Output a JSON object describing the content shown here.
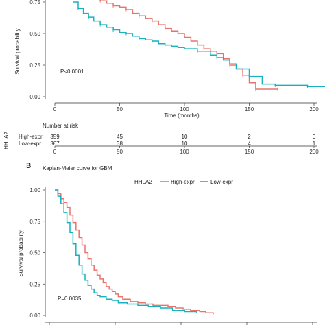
{
  "colors": {
    "high": "#e8736c",
    "low": "#17b1bf",
    "axis": "#333333"
  },
  "chart_data": [
    {
      "type": "line",
      "subtype": "kaplan-meier",
      "title": "",
      "xlabel": "Time (months)",
      "ylabel": "Survival probability",
      "xlim": [
        0,
        210
      ],
      "ylim": [
        0,
        1
      ],
      "xticks": [
        "0",
        "50",
        "100",
        "150",
        "200"
      ],
      "yticks": [
        "0.00",
        "0.25",
        "0.50",
        "0.75"
      ],
      "annotation": "P<0.0001",
      "series": [
        {
          "name": "High-expr",
          "color": "#e8736c",
          "points": [
            [
              14,
              0.86
            ],
            [
              18,
              0.83
            ],
            [
              22,
              0.81
            ],
            [
              26,
              0.79
            ],
            [
              30,
              0.78
            ],
            [
              35,
              0.76
            ],
            [
              40,
              0.74
            ],
            [
              45,
              0.72
            ],
            [
              50,
              0.71
            ],
            [
              55,
              0.69
            ],
            [
              60,
              0.66
            ],
            [
              65,
              0.64
            ],
            [
              70,
              0.62
            ],
            [
              75,
              0.6
            ],
            [
              80,
              0.57
            ],
            [
              85,
              0.54
            ],
            [
              90,
              0.52
            ],
            [
              95,
              0.5
            ],
            [
              100,
              0.47
            ],
            [
              105,
              0.44
            ],
            [
              110,
              0.41
            ],
            [
              115,
              0.38
            ],
            [
              120,
              0.36
            ],
            [
              125,
              0.34
            ],
            [
              130,
              0.3
            ],
            [
              135,
              0.25
            ],
            [
              140,
              0.22
            ],
            [
              145,
              0.17
            ],
            [
              150,
              0.11
            ],
            [
              155,
              0.06
            ],
            [
              160,
              0.06
            ],
            [
              172,
              0.06
            ]
          ]
        },
        {
          "name": "Low-expr",
          "color": "#17b1bf",
          "points": [
            [
              14,
              0.75
            ],
            [
              18,
              0.7
            ],
            [
              22,
              0.66
            ],
            [
              26,
              0.63
            ],
            [
              30,
              0.6
            ],
            [
              35,
              0.57
            ],
            [
              40,
              0.55
            ],
            [
              45,
              0.53
            ],
            [
              50,
              0.51
            ],
            [
              55,
              0.5
            ],
            [
              60,
              0.48
            ],
            [
              65,
              0.46
            ],
            [
              70,
              0.45
            ],
            [
              75,
              0.44
            ],
            [
              80,
              0.42
            ],
            [
              85,
              0.41
            ],
            [
              90,
              0.4
            ],
            [
              95,
              0.39
            ],
            [
              100,
              0.38
            ],
            [
              110,
              0.36
            ],
            [
              120,
              0.33
            ],
            [
              125,
              0.31
            ],
            [
              130,
              0.29
            ],
            [
              135,
              0.26
            ],
            [
              140,
              0.22
            ],
            [
              150,
              0.16
            ],
            [
              160,
              0.1
            ],
            [
              170,
              0.09
            ],
            [
              180,
              0.09
            ],
            [
              195,
              0.08
            ],
            [
              210,
              0.08
            ]
          ]
        }
      ]
    },
    {
      "type": "line",
      "subtype": "kaplan-meier",
      "title": "Kaplan-Meier curve for GBM",
      "xlabel": "",
      "ylabel": "Survival probability",
      "ylim": [
        0,
        1
      ],
      "yticks": [
        "0.00",
        "0.25",
        "0.50",
        "0.75",
        "1.00"
      ],
      "annotation": "P=0.0035",
      "panel_label": "B",
      "legend": {
        "title": "HHLA2",
        "position": "top",
        "entries": [
          "High-expr",
          "Low-expr"
        ]
      },
      "series": [
        {
          "name": "High-expr",
          "color": "#e8736c",
          "points": [
            [
              0,
              1.0
            ],
            [
              2,
              0.97
            ],
            [
              4,
              0.93
            ],
            [
              6,
              0.9
            ],
            [
              8,
              0.86
            ],
            [
              10,
              0.8
            ],
            [
              12,
              0.74
            ],
            [
              14,
              0.68
            ],
            [
              16,
              0.62
            ],
            [
              18,
              0.56
            ],
            [
              20,
              0.5
            ],
            [
              22,
              0.45
            ],
            [
              24,
              0.4
            ],
            [
              26,
              0.36
            ],
            [
              28,
              0.32
            ],
            [
              30,
              0.29
            ],
            [
              32,
              0.26
            ],
            [
              34,
              0.23
            ],
            [
              36,
              0.21
            ],
            [
              38,
              0.19
            ],
            [
              40,
              0.17
            ],
            [
              42,
              0.15
            ],
            [
              45,
              0.13
            ],
            [
              50,
              0.11
            ],
            [
              55,
              0.1
            ],
            [
              60,
              0.09
            ],
            [
              65,
              0.08
            ],
            [
              70,
              0.08
            ],
            [
              75,
              0.07
            ],
            [
              80,
              0.06
            ],
            [
              85,
              0.05
            ],
            [
              90,
              0.04
            ],
            [
              96,
              0.03
            ],
            [
              100,
              0.02
            ],
            [
              105,
              0.01
            ]
          ]
        },
        {
          "name": "Low-expr",
          "color": "#17b1bf",
          "points": [
            [
              0,
              1.0
            ],
            [
              2,
              0.95
            ],
            [
              4,
              0.89
            ],
            [
              6,
              0.82
            ],
            [
              8,
              0.74
            ],
            [
              10,
              0.66
            ],
            [
              12,
              0.57
            ],
            [
              14,
              0.48
            ],
            [
              16,
              0.4
            ],
            [
              18,
              0.33
            ],
            [
              20,
              0.28
            ],
            [
              22,
              0.24
            ],
            [
              24,
              0.21
            ],
            [
              26,
              0.18
            ],
            [
              28,
              0.16
            ],
            [
              30,
              0.15
            ],
            [
              34,
              0.13
            ],
            [
              38,
              0.12
            ],
            [
              42,
              0.1
            ],
            [
              48,
              0.09
            ],
            [
              55,
              0.08
            ],
            [
              62,
              0.07
            ],
            [
              70,
              0.06
            ],
            [
              78,
              0.04
            ],
            [
              86,
              0.03
            ],
            [
              94,
              0.02
            ]
          ]
        }
      ]
    }
  ],
  "risk_table": {
    "title": "Number at risk",
    "strata_label": "HHLA2",
    "groups": [
      {
        "name": "High-expr",
        "color": "#e8736c",
        "counts": [
          "359",
          "45",
          "10",
          "2",
          "0"
        ]
      },
      {
        "name": "Low-expr",
        "color": "#17b1bf",
        "counts": [
          "307",
          "38",
          "10",
          "4",
          "1"
        ]
      }
    ],
    "xticks": [
      "0",
      "50",
      "100",
      "150",
      "200"
    ]
  }
}
